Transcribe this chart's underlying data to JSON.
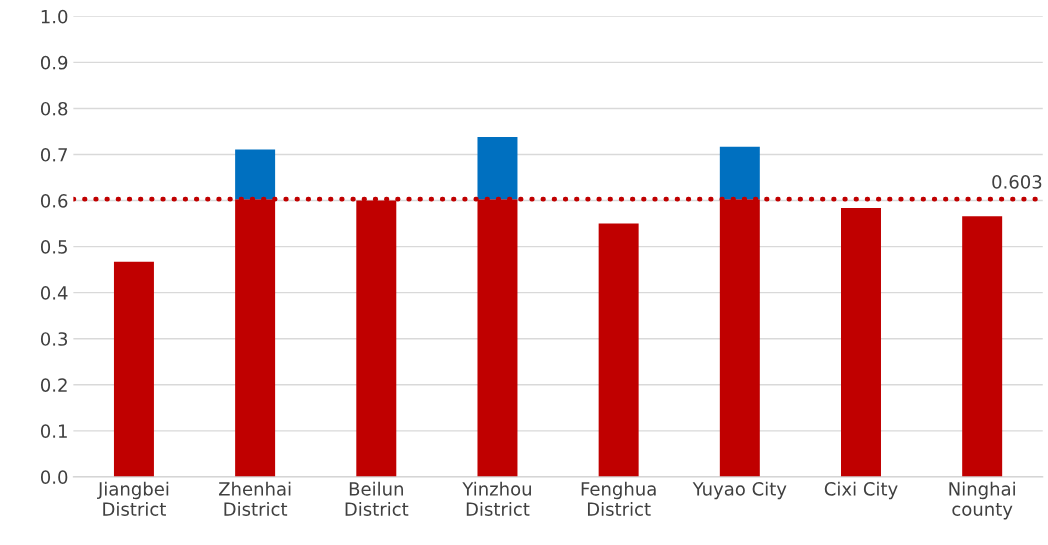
{
  "chart_data": {
    "type": "bar",
    "stacked": true,
    "categories": [
      "Jiangbei\nDistrict",
      "Zhenhai\nDistrict",
      "Beilun\nDistrict",
      "Yinzhou\nDistrict",
      "Fenghua\nDistrict",
      "Yuyao City",
      "Cixi City",
      "Ninghai\ncounty"
    ],
    "series": [
      {
        "color": "#c00000",
        "values": [
          0.467,
          0.603,
          0.6,
          0.603,
          0.55,
          0.603,
          0.584,
          0.566
        ]
      },
      {
        "color": "#0070c0",
        "values": [
          0,
          0.108,
          0,
          0.135,
          0,
          0.114,
          0,
          0
        ]
      }
    ],
    "ylim": [
      0,
      1.0
    ],
    "yticks": [
      {
        "value": 0,
        "label": "0.0"
      },
      0.1,
      0.2,
      0.3,
      0.4,
      0.5,
      0.6,
      0.7,
      0.8,
      0.9,
      {
        "value": 1.0,
        "label": "1.0"
      }
    ],
    "grid": "y",
    "ref_lines": [
      {
        "axis": "y",
        "value": 0.603,
        "label": "0.603",
        "color": "#c00000",
        "line_style": "dotted"
      }
    ]
  }
}
